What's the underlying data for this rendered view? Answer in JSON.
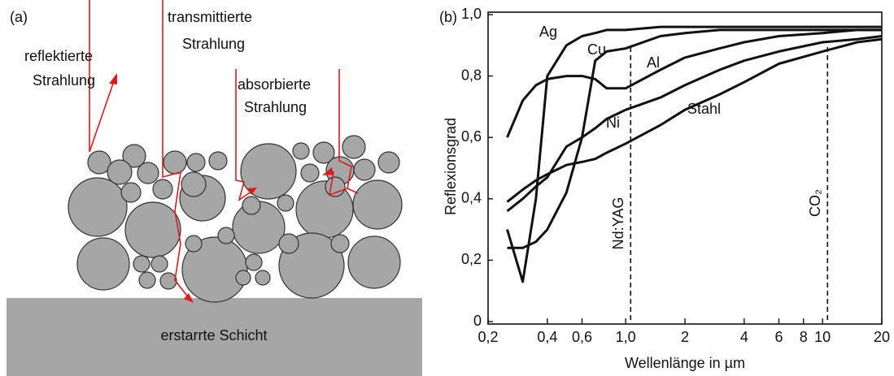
{
  "diagram": {
    "panel_label": "(a)",
    "reflected": [
      "reflektierte",
      "Strahlung"
    ],
    "transmitted": [
      "transmittierte",
      "Strahlung"
    ],
    "absorbed": [
      "absorbierte",
      "Strahlung"
    ],
    "layer": "erstarrte Schicht"
  },
  "chart_data": {
    "type": "line",
    "panel_label": "(b)",
    "x_label": "Wellenlänge in µm",
    "y_label": "Reflexionsgrad",
    "x_scale": "log",
    "x": [
      0.25,
      0.3,
      0.35,
      0.4,
      0.5,
      0.6,
      0.7,
      0.8,
      1.0,
      1.5,
      2,
      3,
      4,
      6,
      10,
      15,
      20
    ],
    "series": [
      {
        "name": "Ag",
        "color": "#111111",
        "values": [
          0.3,
          0.13,
          0.4,
          0.8,
          0.9,
          0.93,
          0.94,
          0.95,
          0.95,
          0.96,
          0.96,
          0.96,
          0.96,
          0.96,
          0.96,
          0.96,
          0.96
        ]
      },
      {
        "name": "Cu",
        "color": "#111111",
        "values": [
          0.24,
          0.24,
          0.26,
          0.3,
          0.42,
          0.6,
          0.85,
          0.88,
          0.89,
          0.93,
          0.94,
          0.95,
          0.95,
          0.95,
          0.95,
          0.95,
          0.95
        ]
      },
      {
        "name": "Al",
        "color": "#111111",
        "values": [
          0.6,
          0.72,
          0.77,
          0.79,
          0.8,
          0.8,
          0.79,
          0.76,
          0.76,
          0.82,
          0.86,
          0.89,
          0.91,
          0.93,
          0.94,
          0.95,
          0.95
        ]
      },
      {
        "name": "Ni",
        "color": "#111111",
        "values": [
          0.36,
          0.4,
          0.44,
          0.47,
          0.57,
          0.6,
          0.63,
          0.66,
          0.69,
          0.73,
          0.77,
          0.82,
          0.85,
          0.88,
          0.91,
          0.92,
          0.93
        ]
      },
      {
        "name": "Stahl",
        "color": "#111111",
        "values": [
          0.39,
          0.43,
          0.46,
          0.48,
          0.51,
          0.52,
          0.53,
          0.55,
          0.58,
          0.64,
          0.69,
          0.74,
          0.78,
          0.84,
          0.88,
          0.91,
          0.92
        ]
      }
    ],
    "vlines": [
      {
        "x": 1.06,
        "label": "Nd:YAG"
      },
      {
        "x": 10.6,
        "label": "CO₂"
      }
    ],
    "xlim": [
      0.2,
      20
    ],
    "xticks": [
      {
        "value": 0.2,
        "label": "0,2"
      },
      {
        "value": 0.4,
        "label": "0,4"
      },
      {
        "value": 0.6,
        "label": "0,6"
      },
      {
        "value": 1.0,
        "label": "1,0"
      },
      2,
      4,
      6,
      8,
      10,
      20
    ],
    "ylim": [
      0,
      1.0
    ],
    "yticks": [
      0,
      {
        "value": 0.2,
        "label": "0,2"
      },
      {
        "value": 0.4,
        "label": "0,4"
      },
      {
        "value": 0.6,
        "label": "0,6"
      },
      {
        "value": 0.8,
        "label": "0,8"
      },
      {
        "value": 1.0,
        "label": "1,0"
      }
    ],
    "grid": false
  }
}
